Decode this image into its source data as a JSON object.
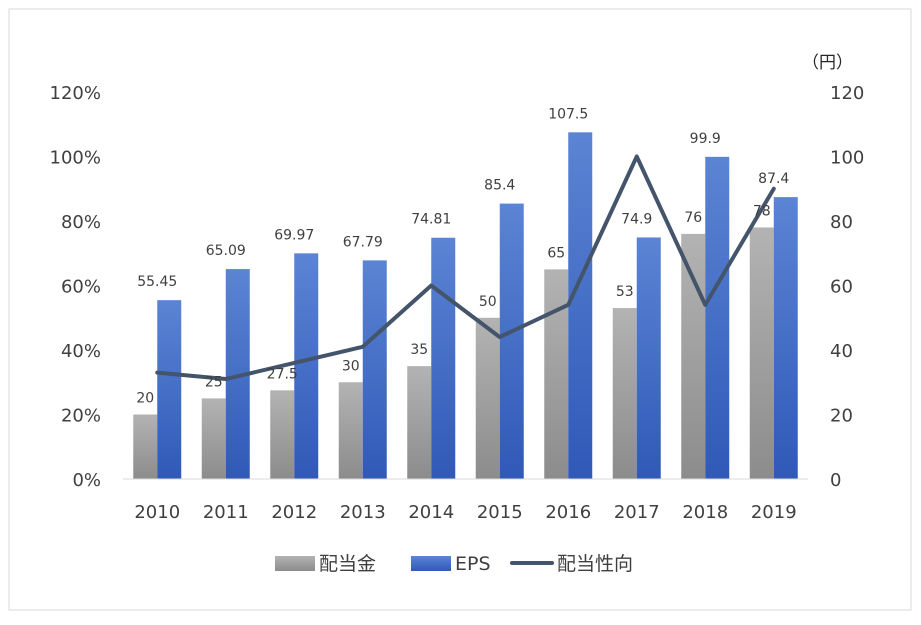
{
  "chart_data": {
    "type": "bar",
    "categories": [
      "2010",
      "2011",
      "2012",
      "2013",
      "2014",
      "2015",
      "2016",
      "2017",
      "2018",
      "2019"
    ],
    "series": [
      {
        "name": "配当金",
        "kind": "bar",
        "axis": "right",
        "values": [
          20,
          25,
          27.5,
          30,
          35,
          50,
          65,
          53,
          76,
          78
        ],
        "labels": [
          "20",
          "25",
          "27.5",
          "30",
          "35",
          "50",
          "65",
          "53",
          "76",
          "78"
        ]
      },
      {
        "name": "EPS",
        "kind": "bar",
        "axis": "right",
        "values": [
          55.45,
          65.09,
          69.97,
          67.79,
          74.81,
          85.4,
          107.5,
          74.9,
          99.9,
          87.4
        ],
        "labels": [
          "55.45",
          "65.09",
          "69.97",
          "67.79",
          "74.81",
          "85.4",
          "107.5",
          "74.9",
          "99.9",
          "87.4"
        ]
      },
      {
        "name": "配当性向",
        "kind": "line",
        "axis": "left",
        "values": [
          33,
          31,
          36,
          41,
          60,
          44,
          54,
          100,
          54,
          90
        ]
      }
    ],
    "left_axis": {
      "min": 0,
      "max": 120,
      "ticks": [
        "0%",
        "20%",
        "40%",
        "60%",
        "80%",
        "100%",
        "120%"
      ]
    },
    "right_axis": {
      "min": 0,
      "max": 120,
      "unit": "（円）",
      "ticks": [
        "0",
        "20",
        "40",
        "60",
        "80",
        "100",
        "120"
      ]
    },
    "legend_position": "bottom",
    "grid": false,
    "colors": {
      "配当金": "#a6a6a6",
      "EPS": "#4472c4",
      "配当性向": "#44546a"
    }
  }
}
